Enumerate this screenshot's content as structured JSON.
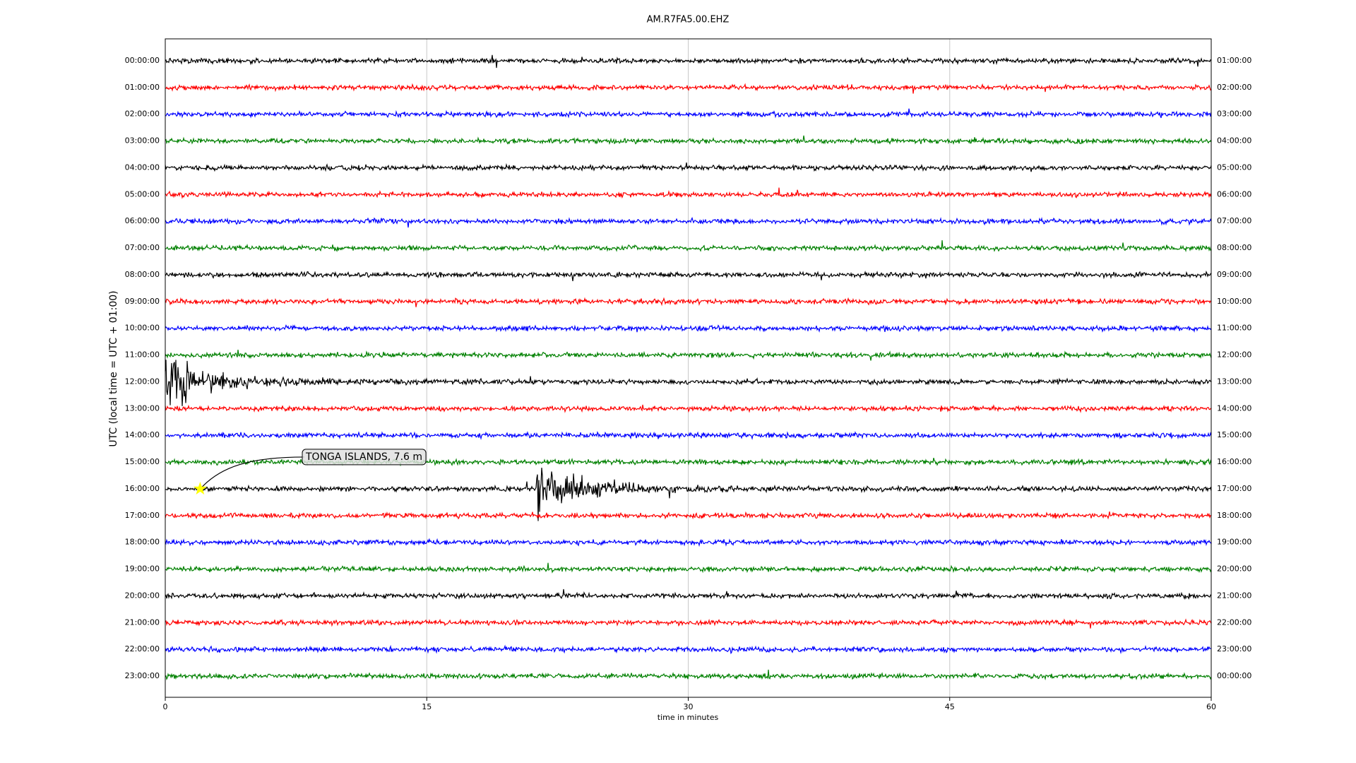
{
  "chart_data": {
    "type": "helicorder",
    "title": "AM.R7FA5.00.EHZ",
    "xlabel": "time in minutes",
    "ylabel": "UTC (local time = UTC + 01:00)",
    "xlim": [
      0,
      60
    ],
    "xticks": [
      0,
      15,
      30,
      45,
      60
    ],
    "grid": true,
    "rows": [
      {
        "label": "00:00:00",
        "label_right": "01:00:00",
        "color": "black"
      },
      {
        "label": "01:00:00",
        "label_right": "02:00:00",
        "color": "red"
      },
      {
        "label": "02:00:00",
        "label_right": "03:00:00",
        "color": "blue"
      },
      {
        "label": "03:00:00",
        "label_right": "04:00:00",
        "color": "green"
      },
      {
        "label": "04:00:00",
        "label_right": "05:00:00",
        "color": "black"
      },
      {
        "label": "05:00:00",
        "label_right": "06:00:00",
        "color": "red"
      },
      {
        "label": "06:00:00",
        "label_right": "07:00:00",
        "color": "blue"
      },
      {
        "label": "07:00:00",
        "label_right": "08:00:00",
        "color": "green"
      },
      {
        "label": "08:00:00",
        "label_right": "09:00:00",
        "color": "black"
      },
      {
        "label": "09:00:00",
        "label_right": "10:00:00",
        "color": "red"
      },
      {
        "label": "10:00:00",
        "label_right": "11:00:00",
        "color": "blue"
      },
      {
        "label": "11:00:00",
        "label_right": "12:00:00",
        "color": "green"
      },
      {
        "label": "12:00:00",
        "label_right": "13:00:00",
        "color": "black"
      },
      {
        "label": "13:00:00",
        "label_right": "14:00:00",
        "color": "red"
      },
      {
        "label": "14:00:00",
        "label_right": "15:00:00",
        "color": "blue"
      },
      {
        "label": "15:00:00",
        "label_right": "16:00:00",
        "color": "green"
      },
      {
        "label": "16:00:00",
        "label_right": "17:00:00",
        "color": "black"
      },
      {
        "label": "17:00:00",
        "label_right": "18:00:00",
        "color": "red"
      },
      {
        "label": "18:00:00",
        "label_right": "19:00:00",
        "color": "blue"
      },
      {
        "label": "19:00:00",
        "label_right": "20:00:00",
        "color": "green"
      },
      {
        "label": "20:00:00",
        "label_right": "21:00:00",
        "color": "black"
      },
      {
        "label": "21:00:00",
        "label_right": "22:00:00",
        "color": "red"
      },
      {
        "label": "22:00:00",
        "label_right": "23:00:00",
        "color": "blue"
      },
      {
        "label": "23:00:00",
        "label_right": "00:00:00",
        "color": "green"
      }
    ],
    "bursts": [
      {
        "row": 16,
        "x": 21.3
      },
      {
        "row": 12,
        "x": 0
      }
    ],
    "annotations": [
      {
        "text": "TONGA ISLANDS, 7.6 m",
        "row": 16,
        "x": 2
      }
    ]
  }
}
